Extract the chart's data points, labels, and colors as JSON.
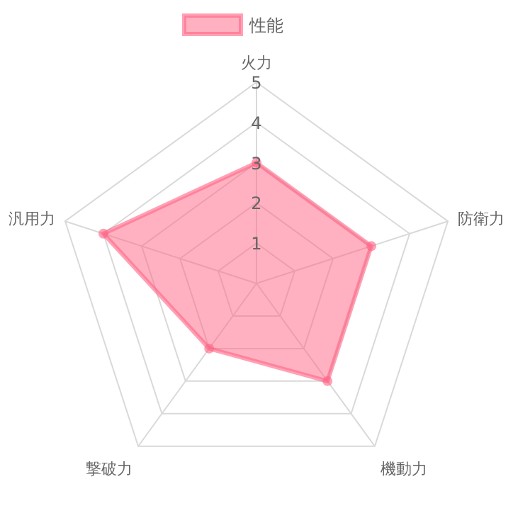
{
  "chart_data": {
    "type": "radar",
    "categories": [
      "火力",
      "防衛力",
      "機動力",
      "撃破力",
      "汎用力"
    ],
    "series": [
      {
        "name": "性能",
        "color": "#ff6384",
        "values": [
          3,
          3,
          3,
          2,
          4
        ]
      }
    ],
    "ylim": [
      0,
      5
    ],
    "yticks": [
      1,
      2,
      3,
      4,
      5
    ],
    "grid": true,
    "legend": "top",
    "marker": "circle"
  }
}
